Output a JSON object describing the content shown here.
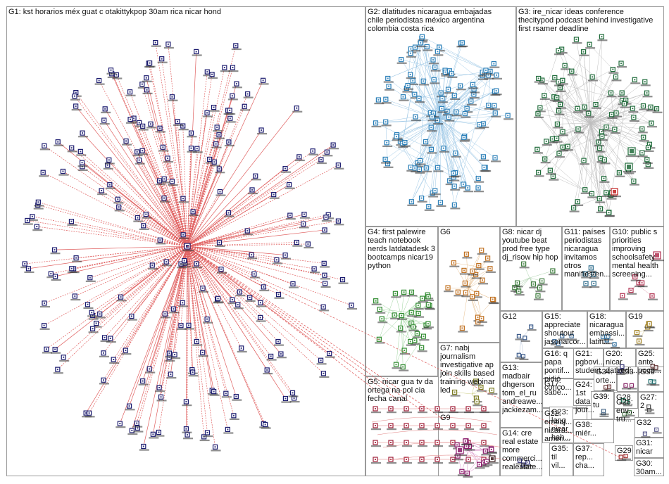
{
  "groups": [
    {
      "id": "G1",
      "label": "G1: kst horarios méx guat c otakittykpop 30am rica nicar hond",
      "color": "#1a1a6e",
      "edge": "#e06060"
    },
    {
      "id": "G2",
      "label": "G2: dlatitudes nicaragua embajadas chile periodistas méxico argentina colombia costa rica",
      "color": "#2a7fb8",
      "edge": "#9ec8e6"
    },
    {
      "id": "G3",
      "label": "G3: ire_nicar ideas conference thecitypod podcast behind investigative first rsamer deadline",
      "color": "#1f6b3a",
      "edge": "#bfbfbf"
    },
    {
      "id": "G4",
      "label": "G4: first palewire teach notebook nerds latdatadesk 3 bootcamps nicar19 python",
      "color": "#2e8b2e",
      "edge": "#9fd49f"
    },
    {
      "id": "G5",
      "label": "G5: nicar gua tv da ortega na pol cia fecha canal",
      "color": "#a0203a",
      "edge": "#e08080"
    },
    {
      "id": "G6",
      "label": "G6",
      "color": "#c07020",
      "edge": "#e8c090"
    },
    {
      "id": "G7",
      "label": "G7: nabj journalism investigative ap join skills based training webinar led",
      "color": "#7a7a20",
      "edge": "#cccc80"
    },
    {
      "id": "G8",
      "label": "G8: nicar dj youtube beat prod free type dj_risow hip hop",
      "color": "#3a7a3a",
      "edge": "#aad0aa"
    },
    {
      "id": "G9",
      "label": "G9",
      "color": "#8a1a6a",
      "edge": "#d890c8"
    },
    {
      "id": "G10",
      "label": "G10: public s priorities improving schoolsafety mental health screening...",
      "color": "#b03050",
      "edge": "#e0a0b0"
    },
    {
      "id": "G11",
      "label": "G11: países periodistas nicaragua invitamos otros manifiesten...",
      "color": "#2a6a8a",
      "edge": "#a0c8d8"
    },
    {
      "id": "G12",
      "label": "G12",
      "color": "#3a5a8a",
      "edge": "#b0c0d8"
    },
    {
      "id": "G13",
      "label": "G13: madbair dhgerson tom_el_ru andreawe... jackiezam...",
      "color": "#1a3a6a",
      "edge": "#a0b0d0"
    },
    {
      "id": "G14",
      "label": "G14: cre real estate more commerci... realestate...",
      "color": "#2a2a6a",
      "edge": "#b0b0d8"
    },
    {
      "id": "G15",
      "label": "G15: appreciate shoutout jasonalcor...",
      "color": "#3a6a9a",
      "edge": "#b0c8e0"
    },
    {
      "id": "G16",
      "label": "G16: q papa pontif... pidió conco...",
      "color": "#4a4a8a",
      "edge": "#b8b8d8"
    },
    {
      "id": "G17",
      "label": "G17: sabe...",
      "color": "#5a5a5a",
      "edge": "#c0c0c0"
    },
    {
      "id": "G18",
      "label": "G18: nicaragua embassi... latin...",
      "color": "#2a6a9a",
      "edge": "#b0c8e0"
    },
    {
      "id": "G19",
      "label": "G19",
      "color": "#a08020",
      "edge": "#e0d090"
    },
    {
      "id": "G20",
      "label": "G20: nicar dataedi...",
      "color": "#3a3a7a",
      "edge": "#b0b0d0"
    },
    {
      "id": "G21",
      "label": "G21: pgbovi... student...",
      "color": "#4a6a4a",
      "edge": "#b8d0b8"
    },
    {
      "id": "G22",
      "label": "G22: embaj... nicara... améri...",
      "color": "#2a4a7a",
      "edge": "#b0c0d8"
    },
    {
      "id": "G23",
      "label": "G23: lang nicar hah...",
      "color": "#3a3a6a",
      "edge": "#b0b0d0"
    },
    {
      "id": "G24",
      "label": "G24: 1st data jour...",
      "color": "#2a5a2a",
      "edge": "#b0d0b0"
    },
    {
      "id": "G25",
      "label": "G25: ante poco...",
      "color": "#5a2a2a",
      "edge": "#d0b0b0"
    },
    {
      "id": "G26",
      "label": "G26: env... tru...",
      "color": "#3a6a3a",
      "edge": "#b0d0b0"
    },
    {
      "id": "G27",
      "label": "G27: 2",
      "color": "#4a4a4a",
      "edge": "#c0c0c0"
    },
    {
      "id": "G28",
      "label": "G28",
      "color": "#1a7a5a",
      "edge": "#a0d0c0"
    },
    {
      "id": "G29",
      "label": "G29",
      "color": "#a03030",
      "edge": "#e0a0a0"
    },
    {
      "id": "G30",
      "label": "G30: 30am...",
      "color": "#2a2a5a",
      "edge": "#b0b0d0"
    },
    {
      "id": "G31",
      "label": "G31: nicar",
      "color": "#3a3a7a",
      "edge": "#b0b0d0"
    },
    {
      "id": "G32",
      "label": "G32",
      "color": "#5a5a8a",
      "edge": "#c0c0d8"
    },
    {
      "id": "G33",
      "label": "G33",
      "color": "#8a2a6a",
      "edge": "#d8a0c8"
    },
    {
      "id": "G34",
      "label": "G34: orte...",
      "color": "#6a3a3a",
      "edge": "#d0b0b0"
    },
    {
      "id": "G35",
      "label": "G35: til vil...",
      "color": "#3a5a3a",
      "edge": "#b0d0b0"
    },
    {
      "id": "G36",
      "label": "G36",
      "color": "#1a6a6a",
      "edge": "#a0d0d0"
    },
    {
      "id": "G37",
      "label": "G37: rep... cha...",
      "color": "#4a4a6a",
      "edge": "#b8b8d0"
    },
    {
      "id": "G38",
      "label": "G38: miér...",
      "color": "#5a4a3a",
      "edge": "#d0c0b0"
    },
    {
      "id": "G39",
      "label": "G39: tu",
      "color": "#4a6a8a",
      "edge": "#b0c8d8"
    }
  ]
}
